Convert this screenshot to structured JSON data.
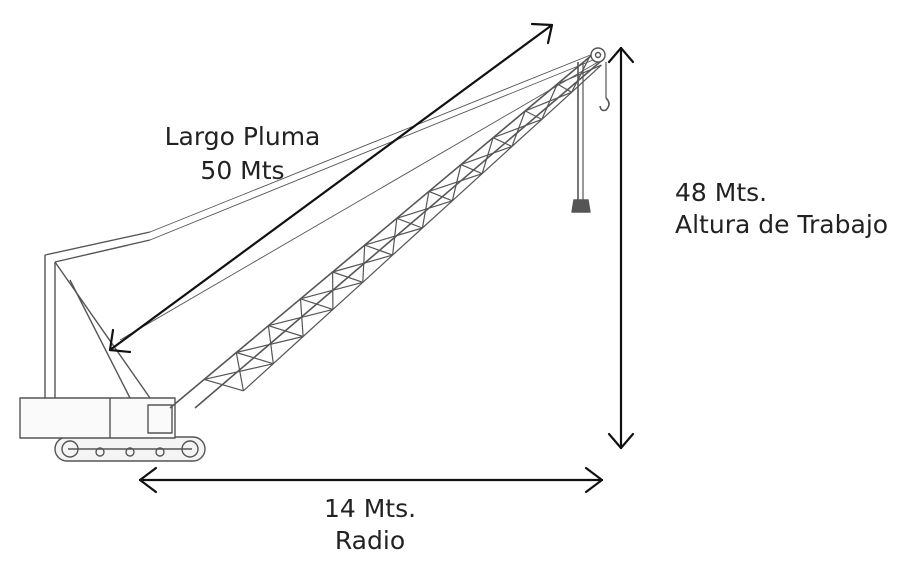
{
  "boom_length": {
    "line1": "Largo Pluma",
    "line2": "50 Mts"
  },
  "working_height": {
    "line1": "48 Mts.",
    "line2": "Altura de Trabajo"
  },
  "radius": {
    "line1": "14 Mts.",
    "line2": "Radio"
  },
  "colors": {
    "ink": "#222222",
    "drawing": "#555555",
    "background": "#ffffff"
  }
}
